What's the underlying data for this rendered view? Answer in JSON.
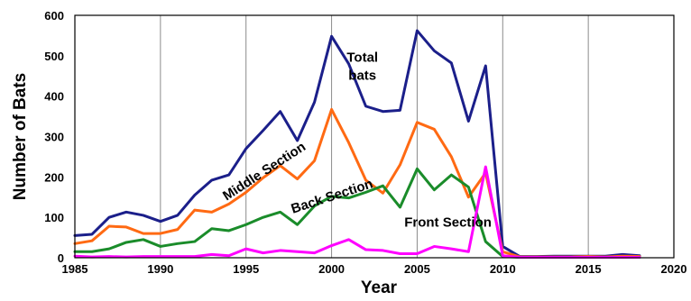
{
  "chart_data": {
    "type": "line",
    "title": "",
    "xlabel": "Year",
    "ylabel": "Number of Bats",
    "xlim": [
      1985,
      2020
    ],
    "ylim": [
      0,
      600
    ],
    "xticks": [
      "1985",
      "1990",
      "1995",
      "2000",
      "2005",
      "2010",
      "2015",
      "2020"
    ],
    "yticks": [
      "0",
      "100",
      "200",
      "300",
      "400",
      "500",
      "600"
    ],
    "grid": "vertical",
    "legend": "none",
    "x": [
      1985,
      1986,
      1987,
      1988,
      1989,
      1990,
      1991,
      1992,
      1993,
      1994,
      1995,
      1996,
      1997,
      1998,
      1999,
      2000,
      2001,
      2002,
      2003,
      2004,
      2005,
      2006,
      2007,
      2008,
      2009,
      2010,
      2011,
      2012,
      2013,
      2014,
      2015,
      2016,
      2017,
      2018
    ],
    "series": [
      {
        "color": "#1b1f8a",
        "values": [
          55,
          58,
          100,
          113,
          105,
          90,
          105,
          155,
          192,
          205,
          270,
          315,
          362,
          290,
          385,
          548,
          480,
          375,
          362,
          365,
          562,
          512,
          482,
          338,
          475,
          28,
          3,
          3,
          4,
          4,
          4,
          4,
          8,
          5
        ]
      },
      {
        "color": "#ff6a13",
        "values": [
          35,
          42,
          78,
          76,
          60,
          60,
          70,
          118,
          113,
          133,
          162,
          198,
          228,
          195,
          240,
          367,
          285,
          192,
          160,
          230,
          335,
          318,
          250,
          150,
          210,
          15,
          2,
          2,
          2,
          2,
          3,
          2,
          4,
          3
        ]
      },
      {
        "color": "#1a8c2a",
        "values": [
          15,
          15,
          22,
          38,
          45,
          28,
          35,
          40,
          72,
          67,
          82,
          100,
          113,
          82,
          128,
          152,
          148,
          162,
          178,
          125,
          220,
          168,
          205,
          175,
          40,
          3,
          1,
          1,
          1,
          1,
          1,
          1,
          1,
          1
        ]
      },
      {
        "color": "#ff00ff",
        "values": [
          4,
          2,
          3,
          2,
          3,
          3,
          3,
          3,
          8,
          5,
          22,
          12,
          18,
          15,
          12,
          30,
          45,
          20,
          18,
          10,
          10,
          28,
          22,
          15,
          225,
          5,
          1,
          1,
          1,
          1,
          1,
          1,
          1,
          1
        ]
      }
    ],
    "annotations": [
      {
        "text": "Total",
        "x": 2001.8,
        "y": 485
      },
      {
        "text": "bats",
        "x": 2001.8,
        "y": 440
      },
      {
        "text": "Middle Section",
        "x": 1996.2,
        "y": 205,
        "rotate": -33
      },
      {
        "text": "Back Section",
        "x": 2000.1,
        "y": 142,
        "rotate": -18
      },
      {
        "text": "Front Section",
        "x": 2006.8,
        "y": 77
      }
    ]
  }
}
